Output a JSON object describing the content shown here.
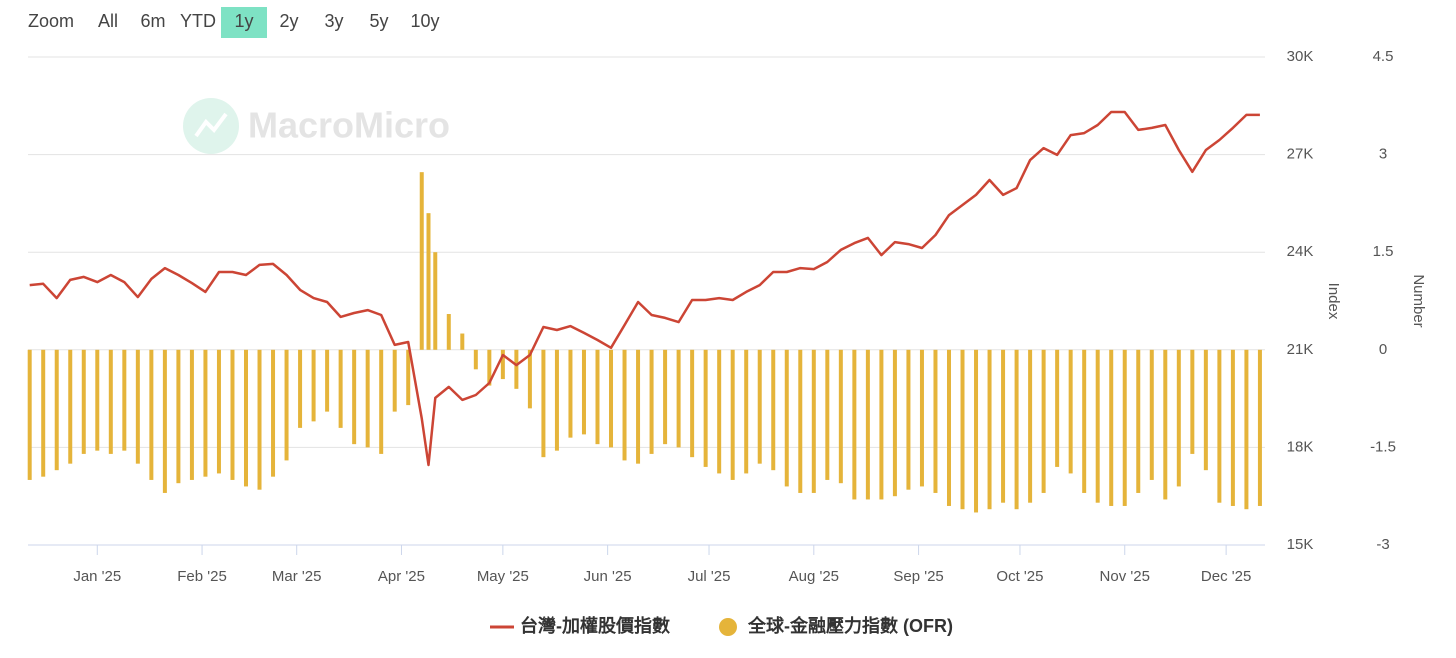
{
  "range_selector": {
    "label": "Zoom",
    "options": [
      "All",
      "6m",
      "YTD",
      "1y",
      "2y",
      "3y",
      "5y",
      "10y"
    ],
    "selected": 3
  },
  "watermark": "MacroMicro",
  "chart_data": {
    "type": "combo",
    "x": [
      -20,
      -16,
      -12,
      -8,
      -4,
      0,
      4,
      8,
      12,
      16,
      20,
      24,
      28,
      32,
      36,
      40,
      44,
      48,
      52,
      56,
      60,
      64,
      68,
      72,
      76,
      80,
      84,
      88,
      92,
      96,
      98,
      100,
      104,
      108,
      112,
      116,
      120,
      124,
      128,
      132,
      136,
      140,
      144,
      148,
      152,
      156,
      160,
      164,
      168,
      172,
      176,
      180,
      184,
      188,
      192,
      196,
      200,
      204,
      208,
      212,
      216,
      220,
      224,
      228,
      232,
      236,
      240,
      244,
      248,
      252,
      256,
      260,
      264,
      268,
      272,
      276,
      280,
      284,
      288,
      292,
      296,
      300,
      304,
      308,
      312,
      316,
      320,
      324,
      328,
      332,
      336,
      340,
      344
    ],
    "xlim": [
      -20.5,
      345.5
    ],
    "xticks": [
      {
        "value": 0,
        "label": "Jan '25"
      },
      {
        "value": 31,
        "label": "Feb '25"
      },
      {
        "value": 59,
        "label": "Mar '25"
      },
      {
        "value": 90,
        "label": "Apr '25"
      },
      {
        "value": 120,
        "label": "May '25"
      },
      {
        "value": 151,
        "label": "Jun '25"
      },
      {
        "value": 181,
        "label": "Jul '25"
      },
      {
        "value": 212,
        "label": "Aug '25"
      },
      {
        "value": 243,
        "label": "Sep '25"
      },
      {
        "value": 273,
        "label": "Oct '25"
      },
      {
        "value": 304,
        "label": "Nov '25"
      },
      {
        "value": 334,
        "label": "Dec '25"
      }
    ],
    "ylabel": "Index",
    "ylim": [
      15000,
      30000
    ],
    "yticks": [
      {
        "value": 15000,
        "label": "15K"
      },
      {
        "value": 18000,
        "label": "18K"
      },
      {
        "value": 21000,
        "label": "21K"
      },
      {
        "value": 24000,
        "label": "24K"
      },
      {
        "value": 27000,
        "label": "27K"
      },
      {
        "value": 30000,
        "label": "30K"
      }
    ],
    "y2label": "Number",
    "y2lim": [
      -3,
      4.5
    ],
    "y2ticks": [
      -3,
      -1.5,
      0,
      1.5,
      3,
      4.5
    ],
    "grid": true,
    "legend": "bottom",
    "series": [
      {
        "name": "台灣-加權股價指數",
        "type": "line",
        "color": "#cc4535",
        "values": [
          22990,
          23030,
          22590,
          23150,
          23240,
          23080,
          23300,
          23080,
          22620,
          23180,
          23510,
          23300,
          23050,
          22780,
          23390,
          23390,
          23300,
          23610,
          23640,
          23300,
          22840,
          22590,
          22470,
          22010,
          22130,
          22220,
          22070,
          21150,
          21240,
          18900,
          17460,
          19520,
          19860,
          19460,
          19610,
          19980,
          20840,
          20530,
          20840,
          21700,
          21610,
          21730,
          21520,
          21300,
          21060,
          21760,
          22470,
          22070,
          21980,
          21850,
          22530,
          22530,
          22590,
          22530,
          22780,
          22990,
          23390,
          23390,
          23510,
          23480,
          23700,
          24070,
          24280,
          24440,
          23910,
          24310,
          24250,
          24130,
          24530,
          25140,
          25450,
          25760,
          26220,
          25760,
          25970,
          26830,
          27200,
          26990,
          27600,
          27660,
          27910,
          28310,
          28310,
          27760,
          27820,
          27910,
          27140,
          26470,
          27140,
          27450,
          27820,
          28220,
          28220
        ]
      },
      {
        "name": "全球-金融壓力指數 (OFR)",
        "type": "bar",
        "color": "#e5b43a",
        "axis": "y2",
        "values": [
          -2.0,
          -1.95,
          -1.85,
          -1.75,
          -1.6,
          -1.55,
          -1.6,
          -1.55,
          -1.75,
          -2.0,
          -2.2,
          -2.05,
          -2.0,
          -1.95,
          -1.9,
          -2.0,
          -2.1,
          -2.15,
          -1.95,
          -1.7,
          -1.2,
          -1.1,
          -0.95,
          -1.2,
          -1.45,
          -1.5,
          -1.6,
          -0.95,
          -0.85,
          2.73,
          2.1,
          1.5,
          0.55,
          0.25,
          -0.3,
          -0.55,
          -0.45,
          -0.6,
          -0.9,
          -1.65,
          -1.55,
          -1.35,
          -1.3,
          -1.45,
          -1.5,
          -1.7,
          -1.75,
          -1.6,
          -1.45,
          -1.5,
          -1.65,
          -1.8,
          -1.9,
          -2.0,
          -1.9,
          -1.75,
          -1.85,
          -2.1,
          -2.2,
          -2.2,
          -2.0,
          -2.05,
          -2.3,
          -2.3,
          -2.3,
          -2.25,
          -2.15,
          -2.1,
          -2.2,
          -2.4,
          -2.45,
          -2.5,
          -2.45,
          -2.35,
          -2.45,
          -2.35,
          -2.2,
          -1.8,
          -1.9,
          -2.2,
          -2.35,
          -2.4,
          -2.4,
          -2.2,
          -2.0,
          -2.3,
          -2.1,
          -1.6,
          -1.85,
          -2.35,
          -2.4,
          -2.45,
          -2.4
        ]
      }
    ]
  }
}
